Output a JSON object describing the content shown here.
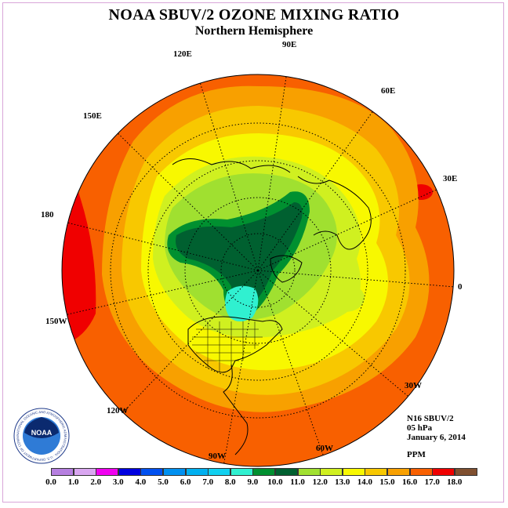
{
  "title": "NOAA SBUV/2 OZONE MIXING RATIO",
  "subtitle": "Northern Hemisphere",
  "longitude_labels": {
    "e120": "120E",
    "e90": "90E",
    "e60": "60E",
    "e150": "150E",
    "e30": "30E",
    "d180": "180",
    "d0": "0",
    "w150": "150W",
    "w30": "30W",
    "w120": "120W",
    "w60": "60W",
    "w90": "90W"
  },
  "info": {
    "instrument": "N16 SBUV/2",
    "level": "05 hPa",
    "date": "January 6, 2014",
    "unit": "PPM"
  },
  "logo": {
    "text": "NOAA",
    "ring_text": "NATIONAL OCEANIC AND ATMOSPHERIC ADMINISTRATION · U.S. DEPARTMENT OF COMMERCE"
  },
  "colorbar": {
    "ticks": [
      "0.0",
      "1.0",
      "2.0",
      "3.0",
      "4.0",
      "5.0",
      "6.0",
      "7.0",
      "8.0",
      "9.0",
      "10.0",
      "11.0",
      "12.0",
      "13.0",
      "14.0",
      "15.0",
      "16.0",
      "17.0",
      "18.0"
    ],
    "colors": [
      "#b67fe0",
      "#d9a6f0",
      "#f000f0",
      "#0000e0",
      "#0050f0",
      "#0090f0",
      "#00b0f0",
      "#10d0f0",
      "#30f0d0",
      "#009030",
      "#006030",
      "#a0e030",
      "#d0f020",
      "#f8f800",
      "#f8c800",
      "#f8a000",
      "#f86000",
      "#f00000",
      "#805030"
    ]
  }
}
